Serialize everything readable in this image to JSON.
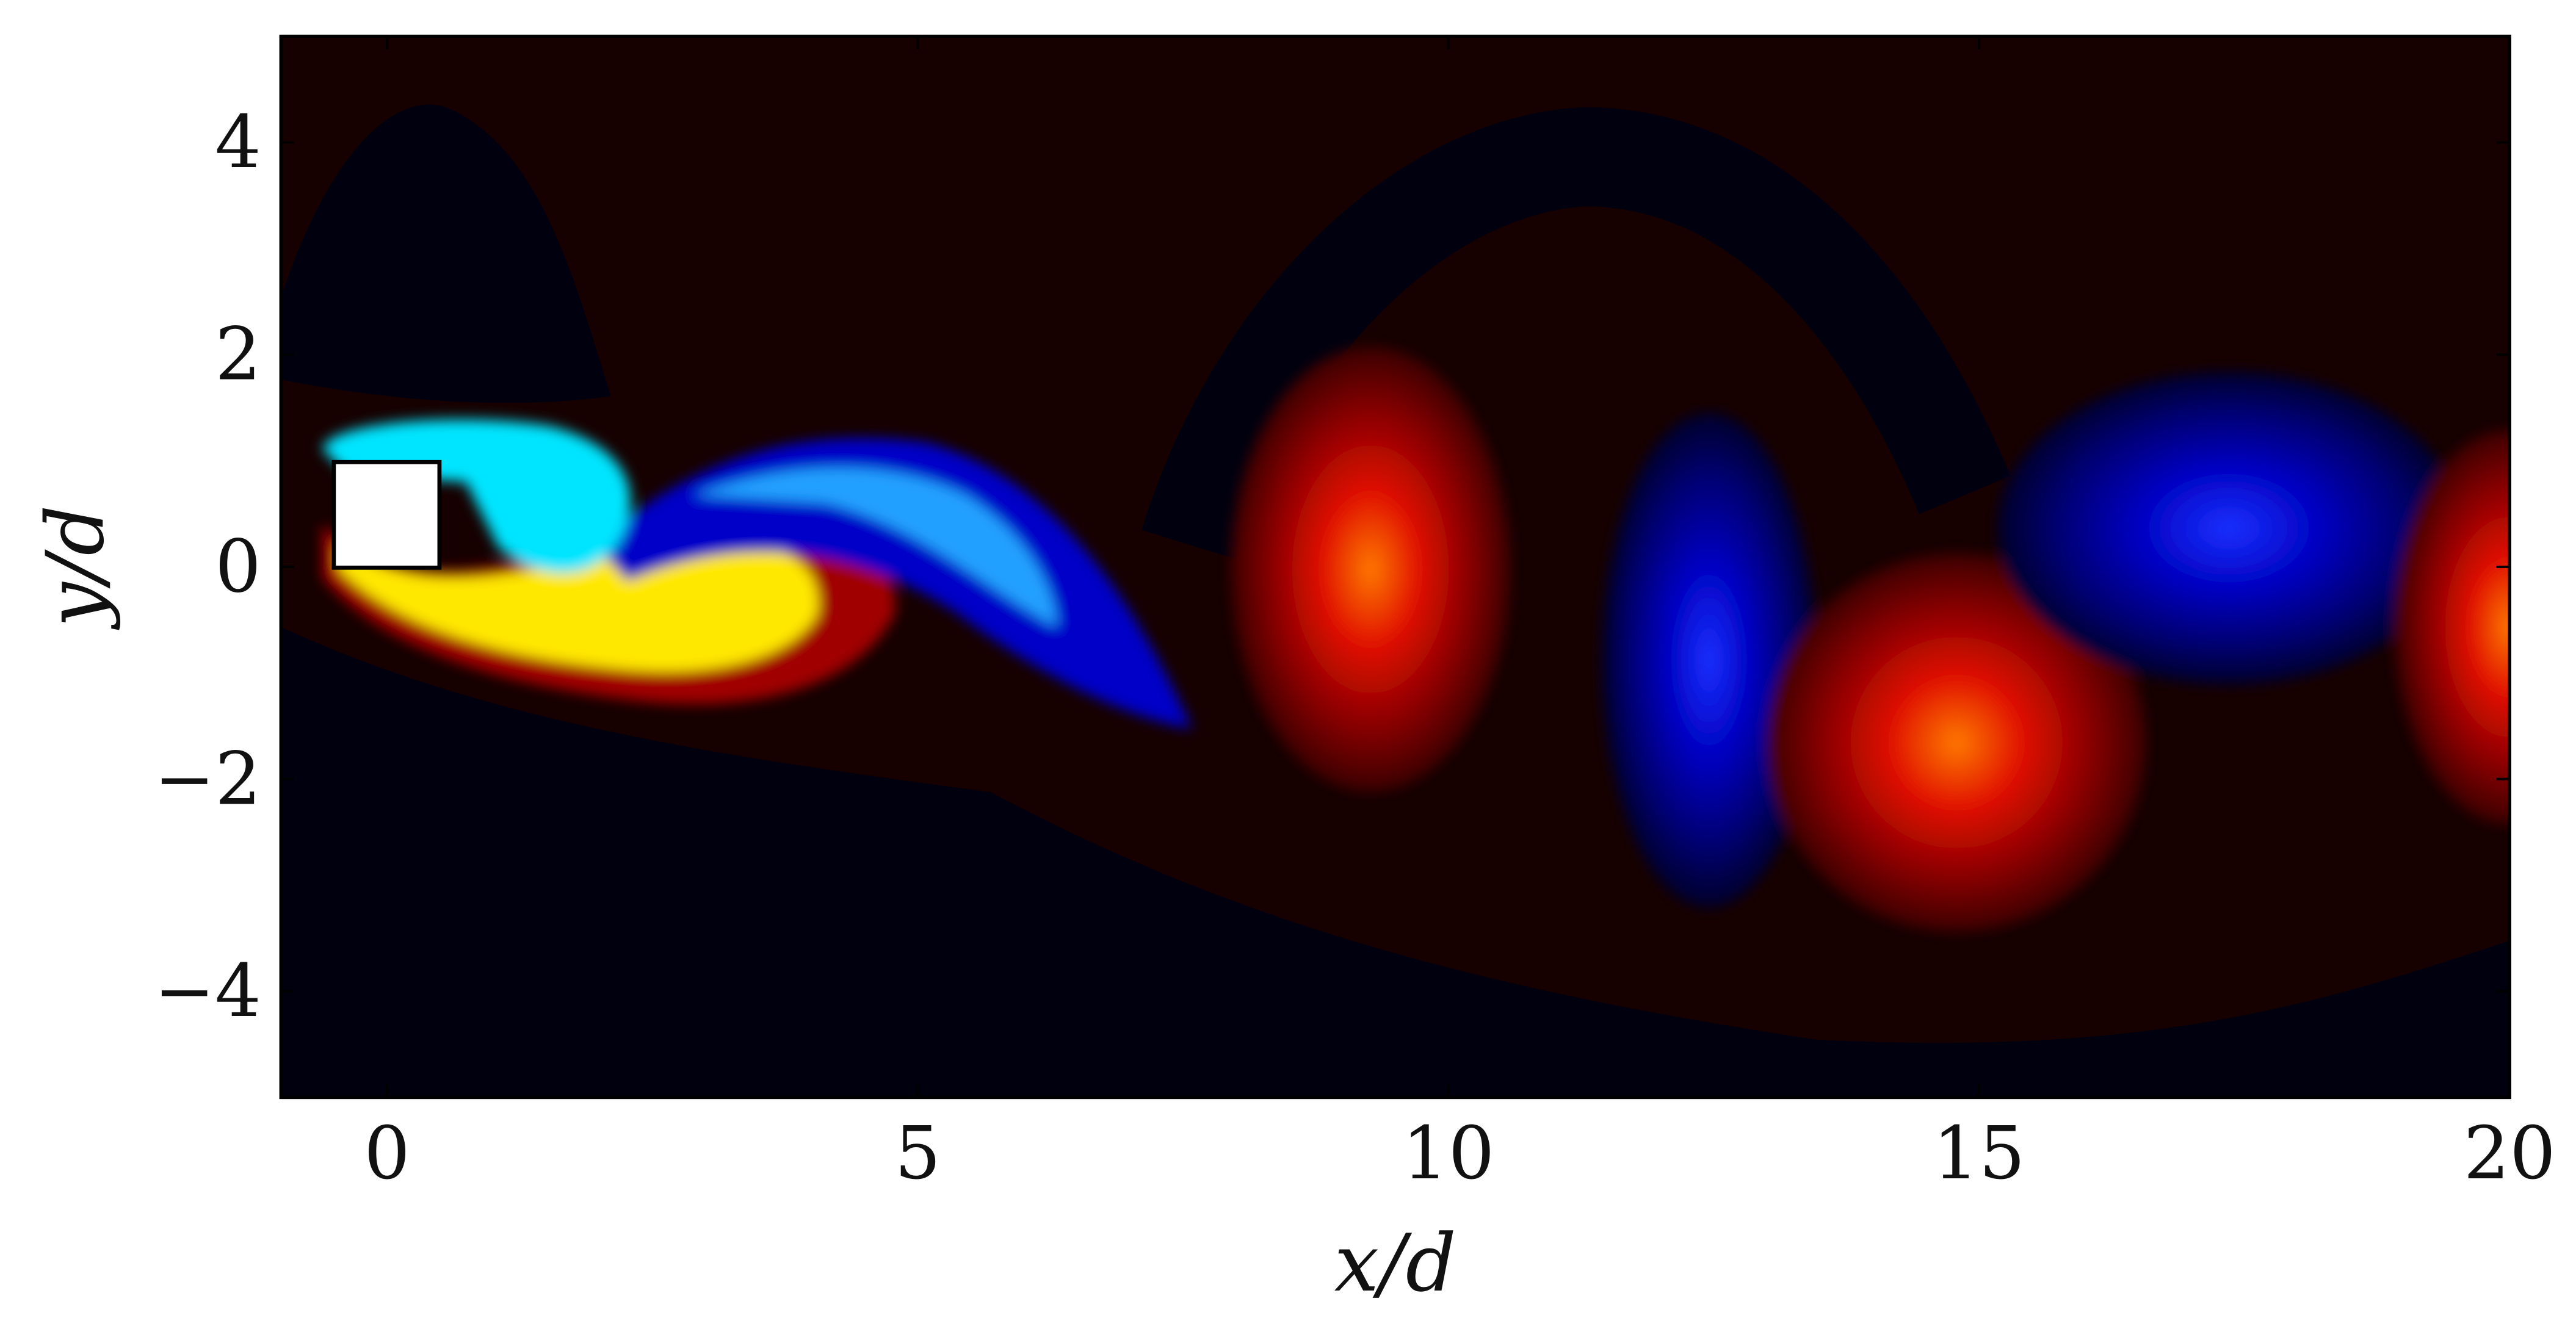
{
  "chart_data": {
    "type": "contour",
    "xlabel": "x/d",
    "ylabel": "y/d",
    "xlim": [
      -1,
      20
    ],
    "ylim": [
      -5,
      5
    ],
    "xticks": [
      0,
      5,
      10,
      15,
      20
    ],
    "yticks": [
      {
        "value": -4,
        "label": "−4"
      },
      {
        "value": -2,
        "label": "−2"
      },
      0,
      2,
      4
    ]
  }
}
